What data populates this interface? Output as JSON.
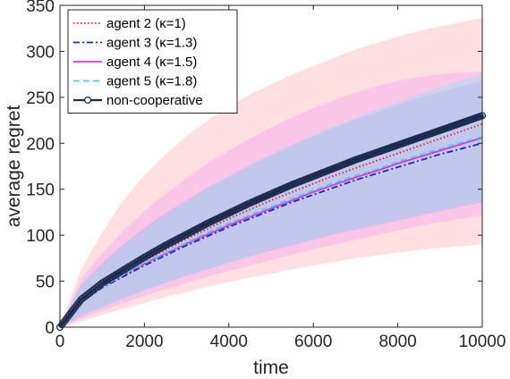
{
  "chart_data": {
    "type": "line",
    "xlabel": "time",
    "ylabel": "average regret",
    "xlim": [
      0,
      10000
    ],
    "ylim": [
      0,
      350
    ],
    "xticks": [
      0,
      2000,
      4000,
      6000,
      8000,
      10000
    ],
    "yticks": [
      0,
      50,
      100,
      150,
      200,
      250,
      300,
      350
    ],
    "grid": false,
    "legend_position": "top-left",
    "x": [
      0,
      500,
      1000,
      1500,
      2000,
      2500,
      3000,
      3500,
      4000,
      4500,
      5000,
      5500,
      6000,
      6500,
      7000,
      7500,
      8000,
      8500,
      9000,
      9500,
      10000
    ],
    "series": [
      {
        "name": "agent 2 (κ=1)",
        "line_style": "dotted",
        "color": "#e8192c",
        "band_color": "#ffb3b8",
        "values": [
          0,
          29,
          46,
          59,
          72,
          84,
          96,
          107,
          118,
          128,
          138,
          147,
          156,
          165,
          173,
          181,
          189,
          197,
          205,
          213,
          221
        ],
        "band_lower": [
          0,
          6,
          13,
          20,
          26,
          33,
          38,
          44,
          49,
          54,
          58,
          63,
          67,
          71,
          75,
          78,
          81,
          84,
          86,
          88,
          90
        ],
        "band_upper": [
          0,
          63,
          103,
          138,
          165,
          188,
          208,
          225,
          240,
          253,
          264,
          275,
          284,
          293,
          302,
          309,
          316,
          322,
          327,
          332,
          336
        ]
      },
      {
        "name": "agent 3 (κ=1.3)",
        "line_style": "dashdot",
        "color": "#1a2bb5",
        "band_color": "#8fa0e8",
        "values": [
          0,
          27,
          43,
          55,
          67,
          78,
          89,
          99,
          109,
          118,
          127,
          136,
          144,
          152,
          160,
          167,
          174,
          181,
          188,
          194,
          200
        ],
        "band_lower": [
          0,
          12,
          22,
          31,
          40,
          48,
          56,
          63,
          70,
          77,
          83,
          89,
          95,
          101,
          106,
          111,
          116,
          121,
          126,
          131,
          136
        ],
        "band_upper": [
          0,
          46,
          70,
          90,
          108,
          124,
          138,
          152,
          164,
          176,
          187,
          198,
          208,
          217,
          226,
          234,
          242,
          249,
          256,
          262,
          268
        ]
      },
      {
        "name": "agent 4 (κ=1.5)",
        "line_style": "solid",
        "color": "#e62ee0",
        "band_color": "#f3a3f0",
        "values": [
          0,
          27,
          44,
          57,
          69,
          80,
          91,
          101,
          111,
          120,
          129,
          138,
          147,
          155,
          163,
          170,
          178,
          185,
          192,
          199,
          206
        ],
        "band_lower": [
          0,
          9,
          18,
          26,
          34,
          41,
          48,
          55,
          61,
          67,
          73,
          79,
          85,
          90,
          95,
          100,
          105,
          110,
          114,
          118,
          122
        ],
        "band_upper": [
          0,
          52,
          80,
          105,
          126,
          145,
          162,
          178,
          192,
          205,
          217,
          228,
          238,
          247,
          255,
          262,
          268,
          272,
          275,
          277,
          278
        ]
      },
      {
        "name": "agent 5 (κ=1.8)",
        "line_style": "dashed",
        "color": "#3cd6e6",
        "band_color": "#9be3ef",
        "values": [
          0,
          28,
          44,
          57,
          70,
          81,
          92,
          103,
          113,
          122,
          131,
          140,
          149,
          157,
          165,
          172,
          180,
          187,
          194,
          201,
          207
        ],
        "band_lower": [
          0,
          12,
          22,
          31,
          40,
          48,
          56,
          63,
          70,
          77,
          84,
          90,
          96,
          102,
          107,
          112,
          117,
          122,
          127,
          132,
          137
        ],
        "band_upper": [
          0,
          45,
          68,
          88,
          106,
          122,
          137,
          151,
          164,
          176,
          188,
          199,
          209,
          219,
          228,
          237,
          245,
          253,
          261,
          269,
          276
        ]
      },
      {
        "name": "non-cooperative",
        "line_style": "solid-circle-markers",
        "color": "#1b2a4e",
        "values": [
          0,
          30,
          48,
          62,
          76,
          89,
          101,
          113,
          124,
          135,
          145,
          155,
          164,
          173,
          182,
          190,
          198,
          206,
          214,
          222,
          230
        ]
      }
    ]
  }
}
